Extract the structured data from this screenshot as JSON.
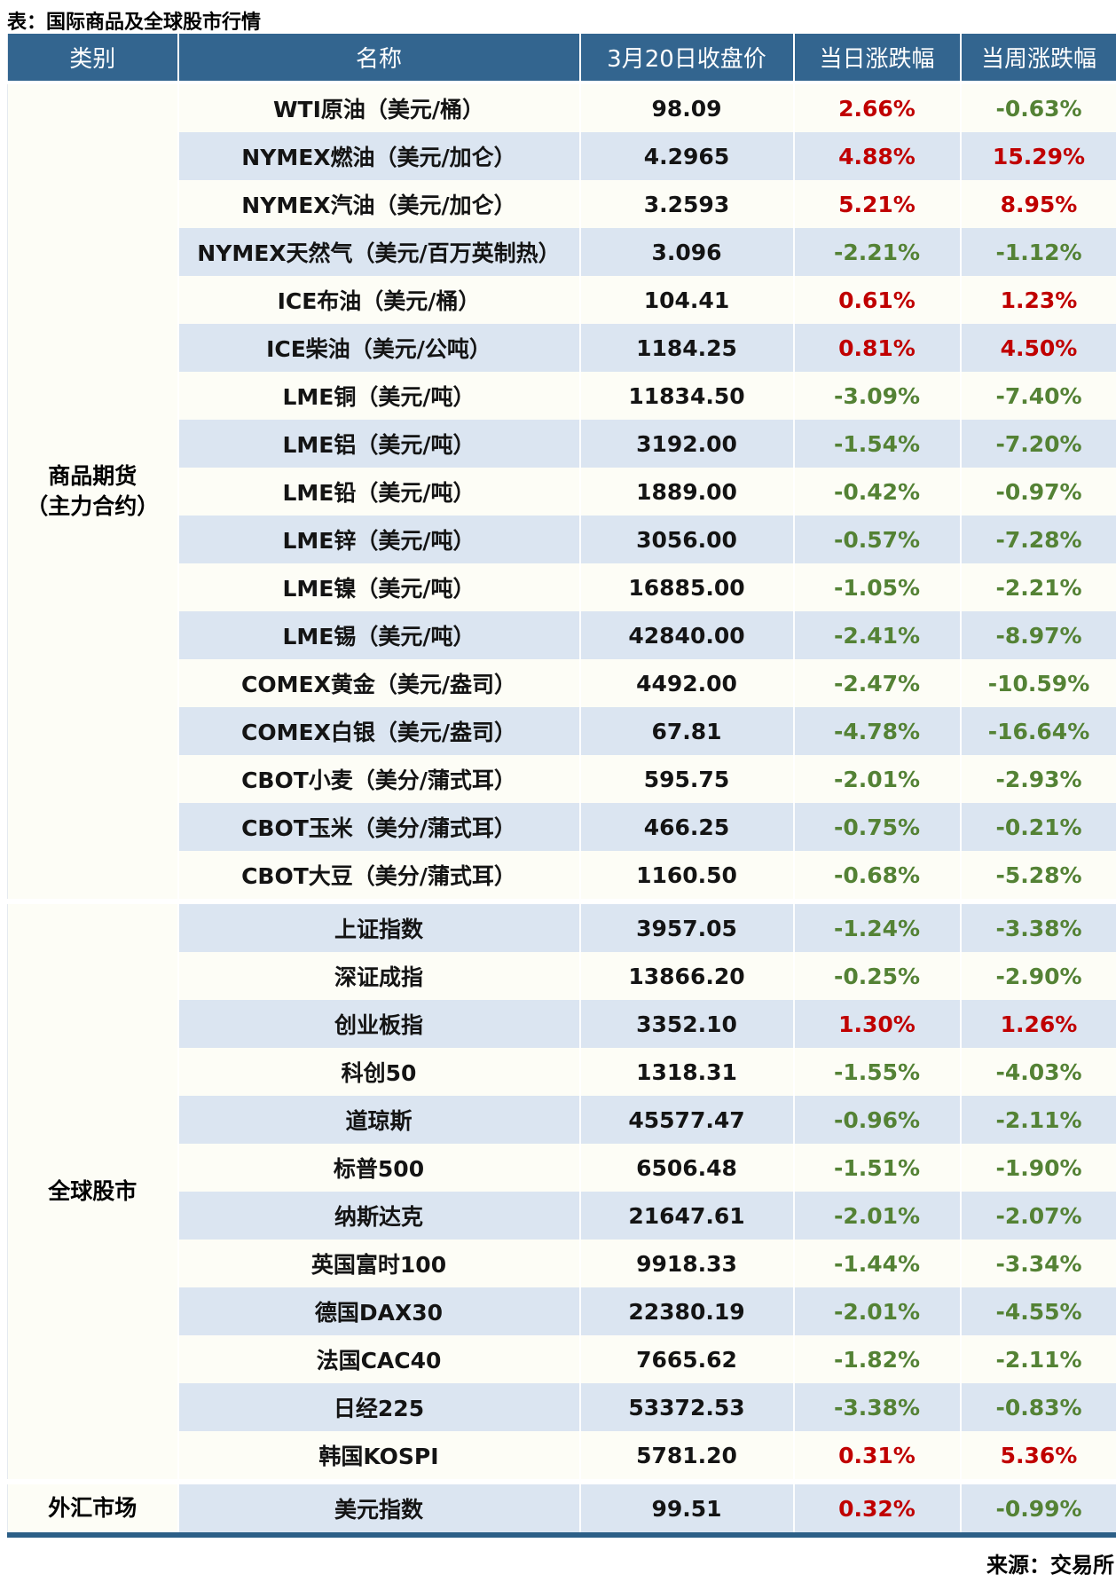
{
  "source": "来源：交易所",
  "colors": {
    "up_red": "#c00000",
    "down_green": "#548235",
    "header_bg": "#33658f",
    "stripe_blue": "#dbe5f1",
    "row_cream": "#fdfdf6",
    "bottom_rule": "#2c5f87"
  },
  "chart_data": {
    "type": "table",
    "title": "表：国际商品及全球股市行情",
    "columns": [
      "类别",
      "名称",
      "3月20日收盘价",
      "当日涨跌幅",
      "当周涨跌幅"
    ],
    "sections": [
      {
        "category": "商品期货\n（主力合约）",
        "rows": [
          [
            "WTI原油（美元/桶）",
            "98.09",
            "2.66%",
            "-0.63%"
          ],
          [
            "NYMEX燃油（美元/加仑）",
            "4.2965",
            "4.88%",
            "15.29%"
          ],
          [
            "NYMEX汽油（美元/加仑）",
            "3.2593",
            "5.21%",
            "8.95%"
          ],
          [
            "NYMEX天然气（美元/百万英制热）",
            "3.096",
            "-2.21%",
            "-1.12%"
          ],
          [
            "ICE布油（美元/桶）",
            "104.41",
            "0.61%",
            "1.23%"
          ],
          [
            "ICE柴油（美元/公吨）",
            "1184.25",
            "0.81%",
            "4.50%"
          ],
          [
            "LME铜（美元/吨）",
            "11834.50",
            "-3.09%",
            "-7.40%"
          ],
          [
            "LME铝（美元/吨）",
            "3192.00",
            "-1.54%",
            "-7.20%"
          ],
          [
            "LME铅（美元/吨）",
            "1889.00",
            "-0.42%",
            "-0.97%"
          ],
          [
            "LME锌（美元/吨）",
            "3056.00",
            "-0.57%",
            "-7.28%"
          ],
          [
            "LME镍（美元/吨）",
            "16885.00",
            "-1.05%",
            "-2.21%"
          ],
          [
            "LME锡（美元/吨）",
            "42840.00",
            "-2.41%",
            "-8.97%"
          ],
          [
            "COMEX黄金（美元/盎司）",
            "4492.00",
            "-2.47%",
            "-10.59%"
          ],
          [
            "COMEX白银（美元/盎司）",
            "67.81",
            "-4.78%",
            "-16.64%"
          ],
          [
            "CBOT小麦（美分/蒲式耳）",
            "595.75",
            "-2.01%",
            "-2.93%"
          ],
          [
            "CBOT玉米（美分/蒲式耳）",
            "466.25",
            "-0.75%",
            "-0.21%"
          ],
          [
            "CBOT大豆（美分/蒲式耳）",
            "1160.50",
            "-0.68%",
            "-5.28%"
          ]
        ]
      },
      {
        "category": "全球股市",
        "rows": [
          [
            "上证指数",
            "3957.05",
            "-1.24%",
            "-3.38%"
          ],
          [
            "深证成指",
            "13866.20",
            "-0.25%",
            "-2.90%"
          ],
          [
            "创业板指",
            "3352.10",
            "1.30%",
            "1.26%"
          ],
          [
            "科创50",
            "1318.31",
            "-1.55%",
            "-4.03%"
          ],
          [
            "道琼斯",
            "45577.47",
            "-0.96%",
            "-2.11%"
          ],
          [
            "标普500",
            "6506.48",
            "-1.51%",
            "-1.90%"
          ],
          [
            "纳斯达克",
            "21647.61",
            "-2.01%",
            "-2.07%"
          ],
          [
            "英国富时100",
            "9918.33",
            "-1.44%",
            "-3.34%"
          ],
          [
            "德国DAX30",
            "22380.19",
            "-2.01%",
            "-4.55%"
          ],
          [
            "法国CAC40",
            "7665.62",
            "-1.82%",
            "-2.11%"
          ],
          [
            "日经225",
            "53372.53",
            "-3.38%",
            "-0.83%"
          ],
          [
            "韩国KOSPI",
            "5781.20",
            "0.31%",
            "5.36%"
          ]
        ]
      },
      {
        "category": "外汇市场",
        "rows": [
          [
            "美元指数",
            "99.51",
            "0.32%",
            "-0.99%"
          ]
        ]
      }
    ]
  }
}
